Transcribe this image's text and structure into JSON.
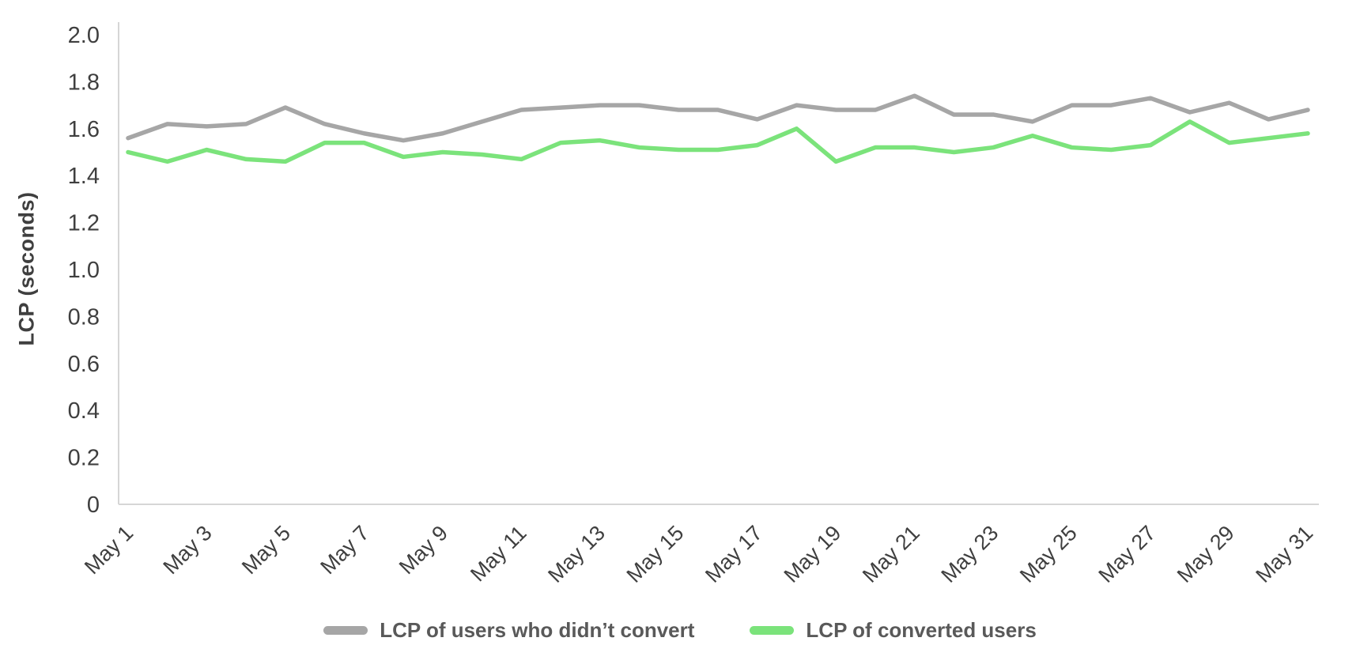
{
  "chart_data": {
    "type": "line",
    "title": "",
    "ylabel": "LCP (seconds)",
    "xlabel": "",
    "ylim": [
      0,
      2.0
    ],
    "ytick_labels": [
      "0",
      "0.2",
      "0.4",
      "0.6",
      "0.8",
      "1.0",
      "1.2",
      "1.4",
      "1.6",
      "1.8",
      "2.0"
    ],
    "x": [
      "May 1",
      "May 2",
      "May 3",
      "May 4",
      "May 5",
      "May 6",
      "May 7",
      "May 8",
      "May 9",
      "May 10",
      "May 11",
      "May 12",
      "May 13",
      "May 14",
      "May 15",
      "May 16",
      "May 17",
      "May 18",
      "May 19",
      "May 20",
      "May 21",
      "May 22",
      "May 23",
      "May 24",
      "May 25",
      "May 26",
      "May 27",
      "May 28",
      "May 29",
      "May 30",
      "May 31"
    ],
    "x_label_every": 2,
    "grid": false,
    "legend_position": "bottom",
    "colors": {
      "axis": "#d6d6d6",
      "tick_text": "#3f3f3f",
      "legend_text": "#595959"
    },
    "series": [
      {
        "id": "non-converted",
        "name": "LCP of users who didn’t convert",
        "color": "#a6a6a6",
        "values": [
          1.56,
          1.62,
          1.61,
          1.62,
          1.69,
          1.62,
          1.58,
          1.55,
          1.58,
          1.63,
          1.68,
          1.69,
          1.7,
          1.7,
          1.68,
          1.68,
          1.64,
          1.7,
          1.68,
          1.68,
          1.74,
          1.66,
          1.66,
          1.63,
          1.7,
          1.7,
          1.73,
          1.67,
          1.71,
          1.64,
          1.68
        ]
      },
      {
        "id": "converted",
        "name": "LCP of converted users",
        "color": "#7be37b",
        "values": [
          1.5,
          1.46,
          1.51,
          1.47,
          1.46,
          1.54,
          1.54,
          1.48,
          1.5,
          1.49,
          1.47,
          1.54,
          1.55,
          1.52,
          1.51,
          1.51,
          1.53,
          1.6,
          1.46,
          1.52,
          1.52,
          1.5,
          1.52,
          1.57,
          1.52,
          1.51,
          1.53,
          1.63,
          1.54,
          1.56,
          1.58
        ]
      }
    ]
  }
}
